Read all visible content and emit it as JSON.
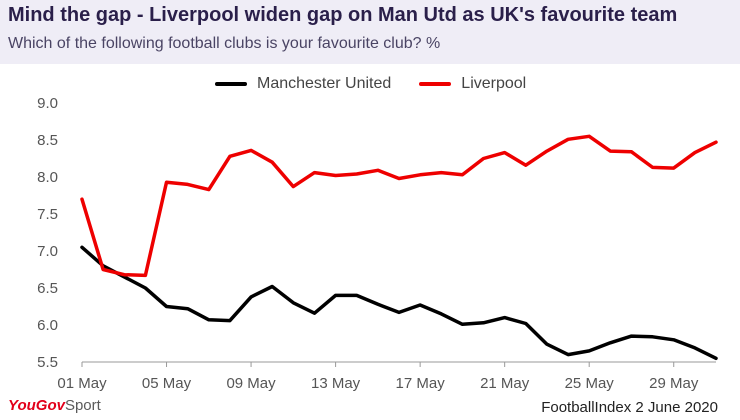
{
  "header": {
    "title": "Mind the gap - Liverpool widen gap on Man Utd as UK's favourite team",
    "subtitle": "Which of the following football clubs is your favourite club? %"
  },
  "footer": {
    "brand_you": "YouGov",
    "brand_sport": "Sport",
    "source": "FootballIndex 2 June 2020"
  },
  "colors": {
    "manchester_united": "#000000",
    "liverpool": "#ee0000",
    "header_background": "#efedf6"
  },
  "chart_data": {
    "type": "line",
    "title": "Mind the gap - Liverpool widen gap on Man Utd as UK's favourite team",
    "subtitle": "Which of the following football clubs is your favourite club? %",
    "xlabel": "",
    "ylabel": "",
    "ylim": [
      5.5,
      9.0
    ],
    "yticks": [
      "9.0",
      "8.5",
      "8.0",
      "7.5",
      "7.0",
      "6.5",
      "6.0",
      "5.5"
    ],
    "ytick_values": [
      9.0,
      8.5,
      8.0,
      7.5,
      7.0,
      6.5,
      6.0,
      5.5
    ],
    "xticks": [
      "01 May",
      "05 May",
      "09 May",
      "13 May",
      "17 May",
      "21 May",
      "25 May",
      "29 May"
    ],
    "xtick_days": [
      1,
      5,
      9,
      13,
      17,
      21,
      25,
      29
    ],
    "x": [
      1,
      2,
      3,
      4,
      5,
      6,
      7,
      8,
      9,
      10,
      11,
      12,
      13,
      14,
      15,
      16,
      17,
      18,
      19,
      20,
      21,
      22,
      23,
      24,
      25,
      26,
      27,
      28,
      29,
      30,
      31
    ],
    "grid": false,
    "legend_position": "top",
    "series": [
      {
        "name": "Manchester United",
        "color": "#000000",
        "values": [
          7.05,
          6.8,
          6.65,
          6.5,
          6.25,
          6.22,
          6.07,
          6.06,
          6.38,
          6.52,
          6.3,
          6.16,
          6.4,
          6.4,
          6.28,
          6.17,
          6.27,
          6.15,
          6.01,
          6.03,
          6.1,
          6.02,
          5.74,
          5.6,
          5.65,
          5.76,
          5.85,
          5.84,
          5.8,
          5.69,
          5.55
        ]
      },
      {
        "name": "Liverpool",
        "color": "#ee0000",
        "values": [
          7.7,
          6.75,
          6.68,
          6.67,
          7.93,
          7.9,
          7.83,
          8.28,
          8.36,
          8.2,
          7.87,
          8.06,
          8.02,
          8.04,
          8.09,
          7.98,
          8.03,
          8.06,
          8.03,
          8.25,
          8.33,
          8.16,
          8.35,
          8.51,
          8.55,
          8.35,
          8.34,
          8.13,
          8.12,
          8.33,
          8.47
        ]
      }
    ]
  }
}
